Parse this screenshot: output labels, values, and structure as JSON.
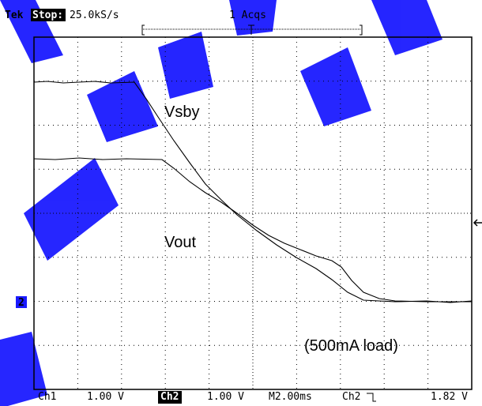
{
  "header": {
    "brand": "Tek",
    "status": "Stop:",
    "rate": "25.0kS/s",
    "acquisitions": "1 Acqs"
  },
  "traces": {
    "upper": "Vsby",
    "lower": "Vout",
    "note": "(500mA load)"
  },
  "marker": "2",
  "footer": {
    "ch1": "Ch1",
    "ch1_scale": "1.00 V",
    "ch2": "Ch2",
    "ch2_scale": "1.00 V",
    "timebase": "M2.00ms",
    "trigger_source": "Ch2",
    "trigger_level": "1.82 V"
  }
}
